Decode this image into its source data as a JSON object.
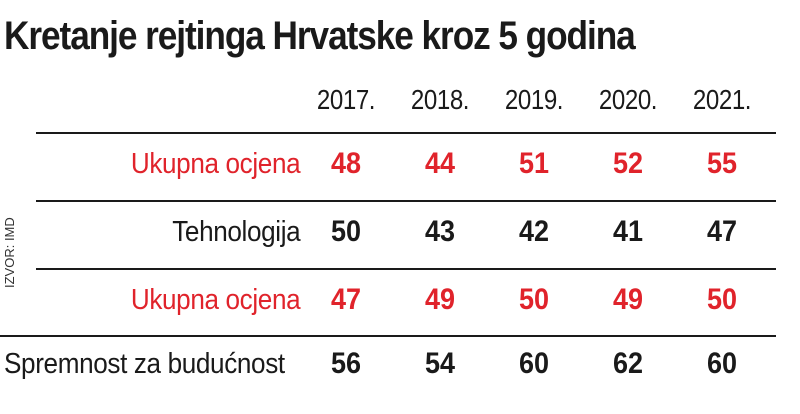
{
  "chart_data": {
    "type": "table",
    "title": "Kretanje rejtinga Hrvatske kroz 5 godina",
    "source": "IZVOR: IMD",
    "columns": [
      "2017.",
      "2018.",
      "2019.",
      "2020.",
      "2021."
    ],
    "rows": [
      {
        "label": "Ukupna ocjena",
        "highlight": true,
        "values": [
          48,
          44,
          51,
          52,
          55
        ]
      },
      {
        "label": "Tehnologija",
        "highlight": false,
        "values": [
          50,
          43,
          42,
          41,
          47
        ]
      },
      {
        "label": "Ukupna ocjena",
        "highlight": true,
        "values": [
          47,
          49,
          50,
          49,
          50
        ]
      },
      {
        "label": "Spremnost za budućnost",
        "highlight": false,
        "values": [
          56,
          54,
          60,
          62,
          60
        ]
      }
    ]
  },
  "colors": {
    "highlight": "#e0232b",
    "text": "#1a1a1a"
  }
}
